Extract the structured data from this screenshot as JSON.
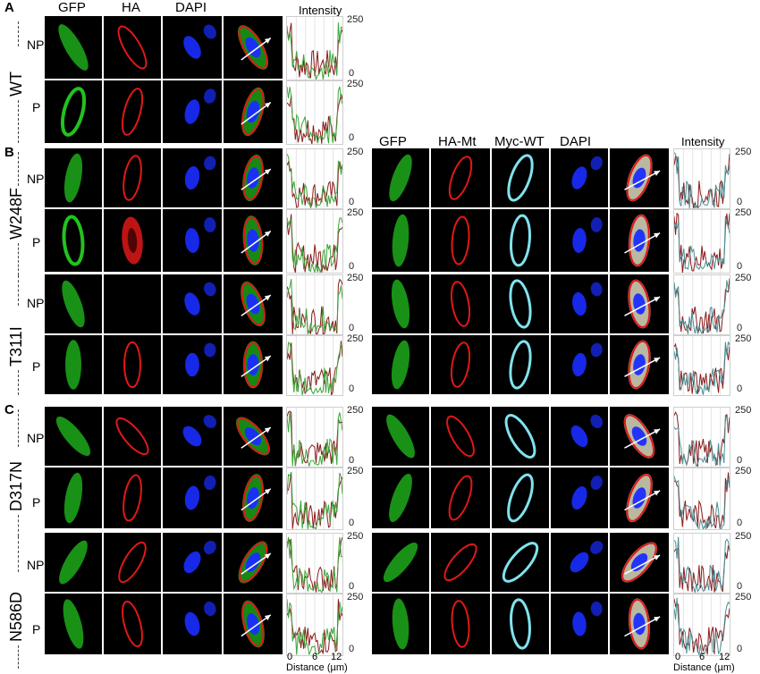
{
  "panels": {
    "A": {
      "letter": "A",
      "group": "WT",
      "rows": [
        "NP",
        "P"
      ]
    },
    "B": {
      "letter": "B",
      "groups": [
        {
          "name": "W248F",
          "rows": [
            "NP",
            "P"
          ]
        },
        {
          "name": "T311I",
          "rows": [
            "NP",
            "P"
          ]
        }
      ]
    },
    "C": {
      "letter": "C",
      "groups": [
        {
          "name": "D317N",
          "rows": [
            "NP",
            "P"
          ]
        },
        {
          "name": "N586D",
          "rows": [
            "NP",
            "P"
          ]
        }
      ]
    }
  },
  "left_columns": [
    "GFP",
    "HA",
    "DAPI"
  ],
  "right_columns": [
    "GFP",
    "HA-Mt",
    "Myc-WT",
    "DAPI"
  ],
  "intensity_label": "Intensity",
  "y_ticks": {
    "top": "250",
    "bottom": "0"
  },
  "x_axis": {
    "ticks": [
      "0",
      "6",
      "12"
    ],
    "label": "Distance (µm)"
  },
  "colors": {
    "gfp": "#22c21e",
    "ha": "#e01818",
    "dapi": "#1a2cff",
    "myc": "#7fe3ee",
    "trace_red": "#8a1a1a",
    "trace_green": "#3aa63a",
    "trace_teal": "#4a8f95"
  }
}
